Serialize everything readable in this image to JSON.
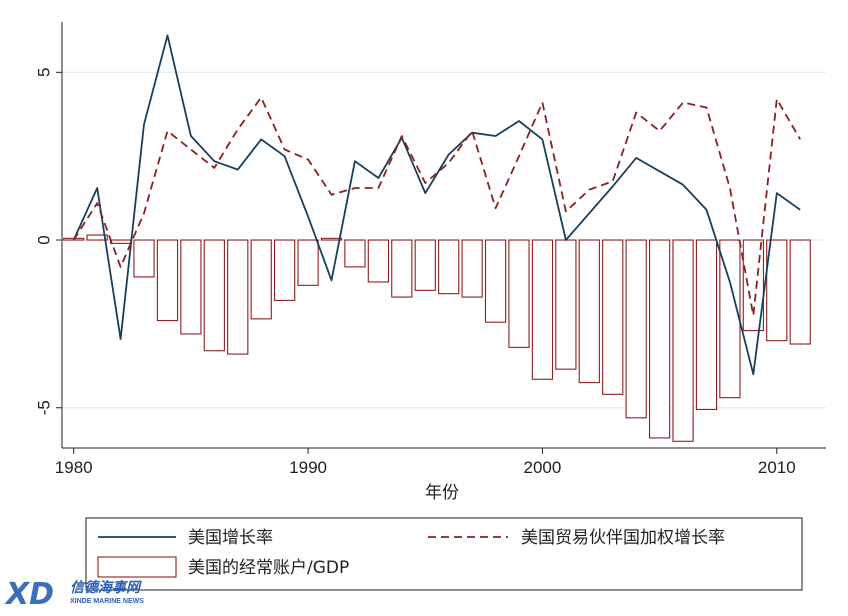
{
  "chart_data": {
    "type": "bar+line",
    "xlabel": "年份",
    "ylabel": "",
    "xlim": [
      1979.5,
      2012.1
    ],
    "ylim": [
      -6.2,
      6.5
    ],
    "grid": true,
    "x_ticks": [
      1980,
      1990,
      2000,
      2010
    ],
    "x_tick_labels": [
      "1980",
      "1990",
      "2000",
      "2010"
    ],
    "y_ticks": [
      5,
      0,
      -5
    ],
    "y_tick_labels": [
      "5",
      "0",
      "-5"
    ],
    "legend_position": "bottom",
    "x": [
      1980,
      1981,
      1982,
      1983,
      1984,
      1985,
      1986,
      1987,
      1988,
      1989,
      1990,
      1991,
      1992,
      1993,
      1994,
      1995,
      1996,
      1997,
      1998,
      1999,
      2000,
      2001,
      2002,
      2003,
      2004,
      2005,
      2006,
      2007,
      2008,
      2009,
      2010,
      2011
    ],
    "series": [
      {
        "name": "美国增长率",
        "type": "line",
        "style": "solid",
        "color": "#1a3f5c",
        "values": [
          0.0,
          1.55,
          -2.95,
          3.45,
          6.1,
          3.1,
          2.35,
          2.1,
          3.0,
          2.5,
          0.7,
          -1.2,
          2.35,
          1.85,
          3.05,
          1.4,
          2.55,
          3.2,
          3.1,
          3.55,
          3.0,
          0.0,
          0.8,
          1.6,
          2.45,
          2.05,
          1.65,
          0.9,
          -1.25,
          -4.0,
          1.4,
          0.9
        ]
      },
      {
        "name": "美国贸易伙伴国加权增长率",
        "type": "line",
        "style": "dashed",
        "color": "#8b2020",
        "values": [
          0.0,
          1.1,
          -0.8,
          0.8,
          3.25,
          2.7,
          2.15,
          3.3,
          4.25,
          2.7,
          2.4,
          1.35,
          1.55,
          1.55,
          3.1,
          1.7,
          2.3,
          3.25,
          0.95,
          2.5,
          4.1,
          0.85,
          1.5,
          1.75,
          3.8,
          3.25,
          4.1,
          3.95,
          1.55,
          -2.25,
          4.2,
          3.0
        ]
      },
      {
        "name": "美国的经常账户/GDP",
        "type": "bar",
        "color": "#8b2020",
        "values": [
          0.05,
          0.15,
          -0.1,
          -1.1,
          -2.4,
          -2.8,
          -3.3,
          -3.4,
          -2.35,
          -1.8,
          -1.35,
          0.05,
          -0.8,
          -1.25,
          -1.7,
          -1.5,
          -1.6,
          -1.7,
          -2.45,
          -3.2,
          -4.15,
          -3.85,
          -4.25,
          -4.6,
          -5.3,
          -5.9,
          -6.0,
          -5.05,
          -4.7,
          -2.7,
          -3.0,
          -3.1
        ]
      }
    ]
  },
  "watermark": {
    "logo_letters": "XD",
    "title": "信德海事网",
    "subtitle": "XINDE MARINE NEWS"
  }
}
